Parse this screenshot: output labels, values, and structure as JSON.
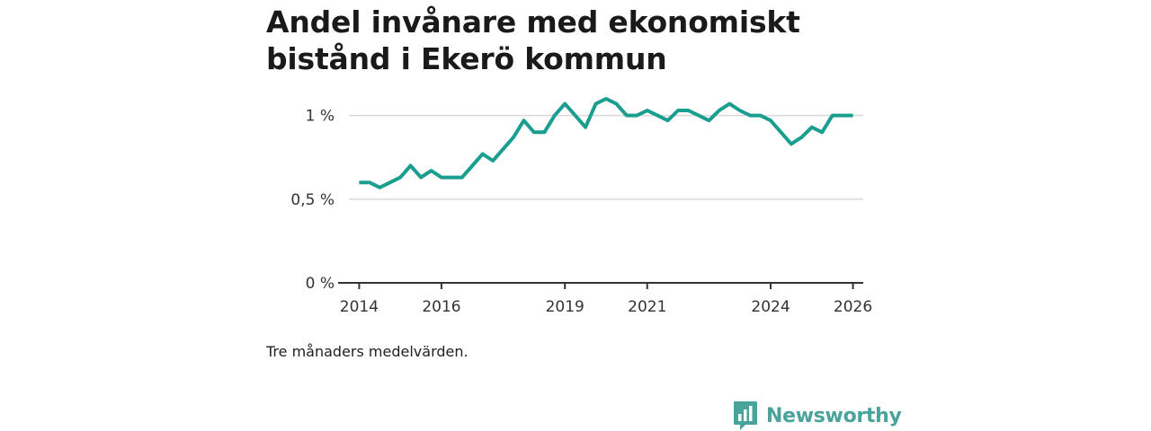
{
  "title": "Andel invånare med ekonomiskt bistånd i Ekerö kommun",
  "caption": "Tre månaders medelvärden.",
  "brand": {
    "name": "Newsworthy",
    "icon": "bar-chart-speech-bubble-icon"
  },
  "colors": {
    "line": "#1a9e8f",
    "grid": "#d9d9d9",
    "axis": "#333333",
    "brand": "#4aa39a"
  },
  "chart_data": {
    "type": "line",
    "title": "Andel invånare med ekonomiskt bistånd i Ekerö kommun",
    "xlabel": "",
    "ylabel": "",
    "grid": true,
    "xlim": [
      2013.75,
      2026.25
    ],
    "ylim": [
      0,
      1.1
    ],
    "x_ticks": [
      2014,
      2016,
      2019,
      2021,
      2024,
      2026
    ],
    "y_ticks": [
      {
        "value": 0,
        "label": "0 %"
      },
      {
        "value": 0.5,
        "label": "0,5 %"
      },
      {
        "value": 1,
        "label": "1 %"
      }
    ],
    "series": [
      {
        "name": "Andel invånare med ekonomiskt bistånd",
        "x": [
          2014.0,
          2014.25,
          2014.5,
          2014.75,
          2015.0,
          2015.25,
          2015.5,
          2015.75,
          2016.0,
          2016.25,
          2016.5,
          2016.75,
          2017.0,
          2017.25,
          2017.5,
          2017.75,
          2018.0,
          2018.25,
          2018.5,
          2018.75,
          2019.0,
          2019.25,
          2019.5,
          2019.75,
          2020.0,
          2020.25,
          2020.5,
          2020.75,
          2021.0,
          2021.25,
          2021.5,
          2021.75,
          2022.0,
          2022.25,
          2022.5,
          2022.75,
          2023.0,
          2023.25,
          2023.5,
          2023.75,
          2024.0,
          2024.25,
          2024.5,
          2024.75,
          2025.0,
          2025.25,
          2025.5,
          2025.75,
          2026.0
        ],
        "values": [
          0.6,
          0.6,
          0.57,
          0.6,
          0.63,
          0.7,
          0.63,
          0.67,
          0.63,
          0.63,
          0.63,
          0.7,
          0.77,
          0.73,
          0.8,
          0.87,
          0.97,
          0.9,
          0.9,
          1.0,
          1.07,
          1.0,
          0.93,
          1.07,
          1.1,
          1.07,
          1.0,
          1.0,
          1.03,
          1.0,
          0.97,
          1.03,
          1.03,
          1.0,
          0.97,
          1.03,
          1.07,
          1.03,
          1.0,
          1.0,
          0.97,
          0.9,
          0.83,
          0.87,
          0.93,
          0.9,
          1.0,
          1.0,
          1.0
        ]
      }
    ]
  }
}
